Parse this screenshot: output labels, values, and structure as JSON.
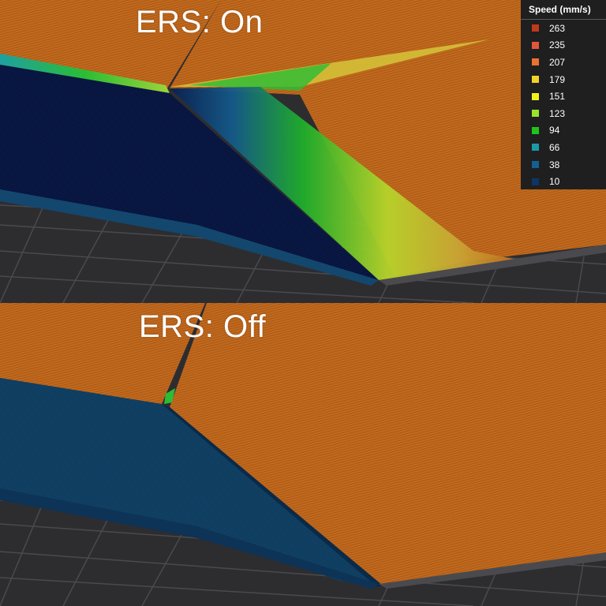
{
  "panels": {
    "top": {
      "title": "ERS: On"
    },
    "bottom": {
      "title": "ERS: Off"
    }
  },
  "legend": {
    "title": "Speed (mm/s)",
    "items": [
      {
        "label": "263",
        "color": "#c0391c"
      },
      {
        "label": "235",
        "color": "#e0573a"
      },
      {
        "label": "207",
        "color": "#e8722e"
      },
      {
        "label": "179",
        "color": "#f2d22a"
      },
      {
        "label": "151",
        "color": "#f1f01e"
      },
      {
        "label": "123",
        "color": "#9be22c"
      },
      {
        "label": "94",
        "color": "#1fc41b"
      },
      {
        "label": "66",
        "color": "#1b9aa5"
      },
      {
        "label": "38",
        "color": "#12608f"
      },
      {
        "label": "10",
        "color": "#0d3566"
      }
    ]
  }
}
